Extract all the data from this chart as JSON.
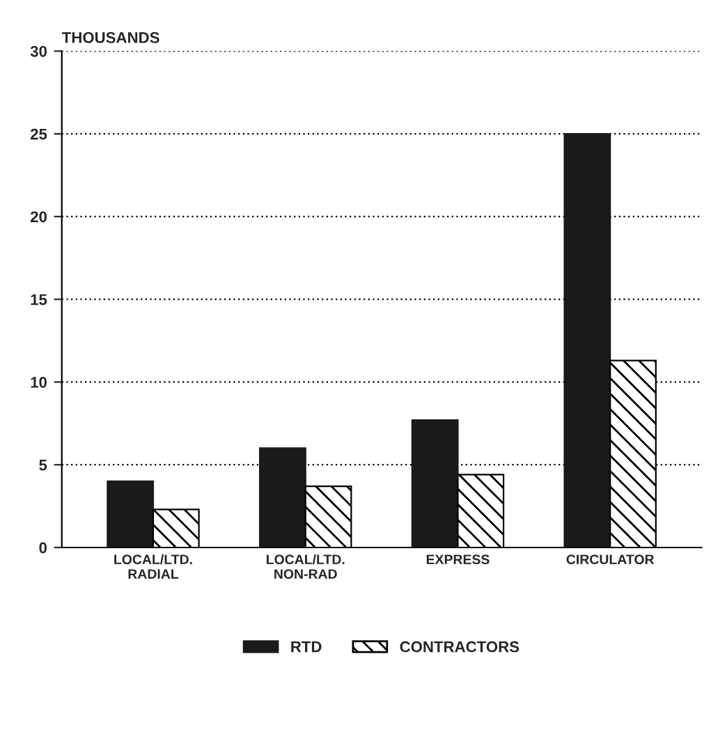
{
  "chart_data": {
    "type": "bar",
    "ylabel": "THOUSANDS",
    "categories": [
      "LOCAL/LTD.\nRADIAL",
      "LOCAL/LTD.\nNON-RAD",
      "EXPRESS",
      "CIRCULATOR"
    ],
    "series": [
      {
        "name": "RTD",
        "color": "#1a1a1a",
        "values": [
          4,
          6,
          7.7,
          25
        ]
      },
      {
        "name": "CONTRACTORS",
        "color": "#000000",
        "values": [
          2.3,
          3.7,
          4.4,
          11.3
        ]
      }
    ],
    "ylim": [
      0,
      30
    ],
    "yticks": [
      0,
      5,
      10,
      15,
      20,
      25,
      30
    ],
    "grid": "y",
    "legend": "bottom"
  }
}
